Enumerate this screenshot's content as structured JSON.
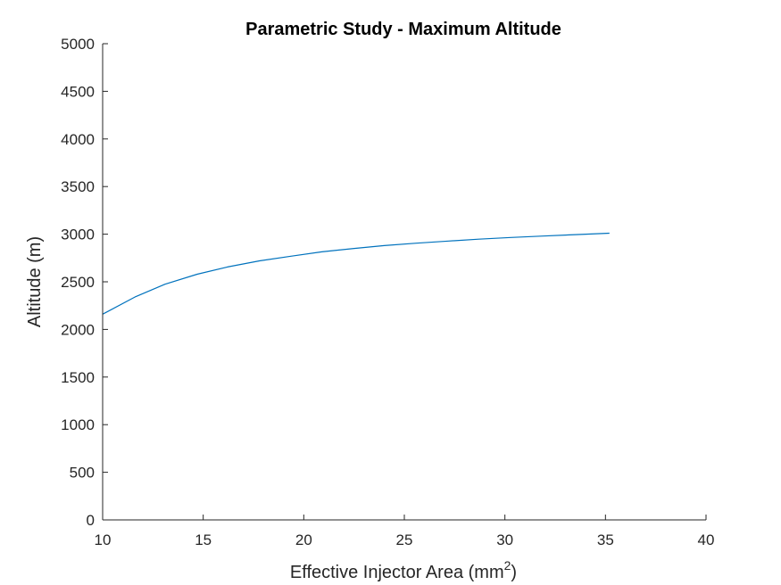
{
  "chart_data": {
    "type": "line",
    "title": "Parametric Study - Maximum Altitude",
    "xlabel": "Effective Injector Area (mm",
    "xlabel_superscript": "2",
    "xlabel_suffix": ")",
    "ylabel": "Altitude (m)",
    "xlim": [
      10,
      40
    ],
    "ylim": [
      0,
      5000
    ],
    "xticks": [
      "10",
      "15",
      "20",
      "25",
      "30",
      "35",
      "40"
    ],
    "yticks": [
      "0",
      "500",
      "1000",
      "1500",
      "2000",
      "2500",
      "3000",
      "3500",
      "4000",
      "4500",
      "5000"
    ],
    "grid": false,
    "series": [
      {
        "color": "#0072BD",
        "x": [
          10.0,
          11.6,
          13.1,
          14.7,
          16.2,
          17.8,
          19.4,
          20.9,
          22.5,
          24.0,
          25.6,
          27.2,
          28.7,
          30.3,
          31.9,
          33.5,
          35.2
        ],
        "y": [
          2160,
          2340,
          2475,
          2580,
          2655,
          2720,
          2770,
          2815,
          2850,
          2880,
          2905,
          2928,
          2948,
          2965,
          2980,
          2995,
          3010
        ]
      }
    ]
  }
}
